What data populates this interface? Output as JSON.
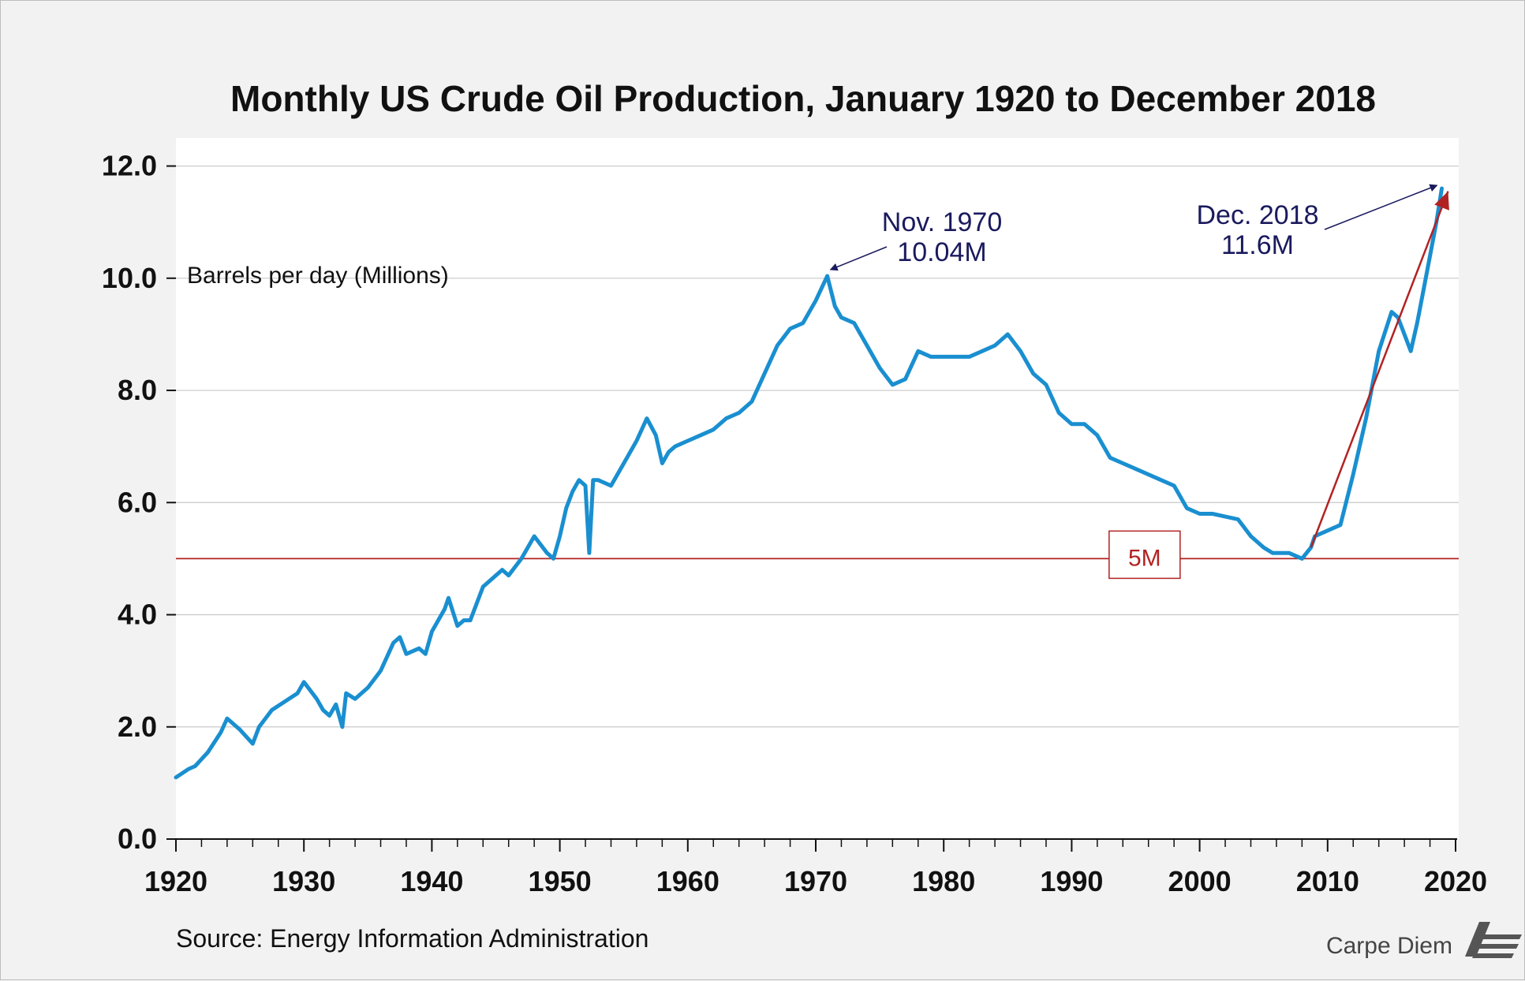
{
  "chart_data": {
    "type": "line",
    "title": "Monthly US Crude Oil Production, January 1920 to December 2018",
    "ylabel": "Barrels per day (Millions)",
    "xlabel": "",
    "xlim": [
      1920,
      2021
    ],
    "ylim": [
      0,
      12.5
    ],
    "x_ticks": [
      "1920",
      "1930",
      "1940",
      "1950",
      "1960",
      "1970",
      "1980",
      "1990",
      "2000",
      "2010",
      "2020"
    ],
    "y_ticks": [
      "0.0",
      "2.0",
      "4.0",
      "6.0",
      "8.0",
      "10.0",
      "12.0"
    ],
    "grid": true,
    "series": [
      {
        "name": "US crude oil production",
        "color": "#1a8fd0",
        "x": [
          1920.0,
          1921.0,
          1921.5,
          1922.5,
          1923.5,
          1924.0,
          1925.0,
          1926.0,
          1926.5,
          1927.5,
          1929.5,
          1930.0,
          1931.0,
          1931.5,
          1932.0,
          1932.5,
          1933.0,
          1933.3,
          1934.0,
          1935.0,
          1936.0,
          1937.0,
          1937.5,
          1938.0,
          1939.0,
          1939.5,
          1940.0,
          1940.5,
          1941.0,
          1941.3,
          1942.0,
          1942.5,
          1943.0,
          1944.0,
          1945.0,
          1945.5,
          1946.0,
          1947.0,
          1948.0,
          1949.0,
          1949.5,
          1950.0,
          1950.5,
          1951.0,
          1951.5,
          1952.0,
          1952.3,
          1952.6,
          1953.0,
          1954.0,
          1955.0,
          1956.0,
          1956.8,
          1957.5,
          1958.0,
          1958.5,
          1959.0,
          1960.0,
          1961.0,
          1962.0,
          1963.0,
          1964.0,
          1965.0,
          1966.0,
          1967.0,
          1968.0,
          1969.0,
          1970.0,
          1970.9,
          1971.5,
          1972.0,
          1973.0,
          1974.0,
          1975.0,
          1976.0,
          1977.0,
          1978.0,
          1979.0,
          1980.0,
          1981.0,
          1982.0,
          1983.0,
          1984.0,
          1985.0,
          1986.0,
          1987.0,
          1988.0,
          1989.0,
          1990.0,
          1991.0,
          1992.0,
          1993.0,
          1994.0,
          1995.0,
          1996.0,
          1997.0,
          1998.0,
          1999.0,
          2000.0,
          2001.0,
          2002.0,
          2003.0,
          2004.0,
          2005.0,
          2005.7,
          2006.0,
          2007.0,
          2008.0,
          2008.7,
          2009.0,
          2010.0,
          2011.0,
          2012.0,
          2013.0,
          2014.0,
          2015.0,
          2015.5,
          2016.0,
          2016.5,
          2017.0,
          2017.5,
          2018.0,
          2018.5,
          2018.92
        ],
        "y": [
          1.1,
          1.25,
          1.3,
          1.55,
          1.9,
          2.15,
          1.95,
          1.7,
          2.0,
          2.3,
          2.6,
          2.8,
          2.5,
          2.3,
          2.2,
          2.4,
          2.0,
          2.6,
          2.5,
          2.7,
          3.0,
          3.5,
          3.6,
          3.3,
          3.4,
          3.3,
          3.7,
          3.9,
          4.1,
          4.3,
          3.8,
          3.9,
          3.9,
          4.5,
          4.7,
          4.8,
          4.7,
          5.0,
          5.4,
          5.1,
          5.0,
          5.4,
          5.9,
          6.2,
          6.4,
          6.3,
          5.1,
          6.4,
          6.4,
          6.3,
          6.7,
          7.1,
          7.5,
          7.2,
          6.7,
          6.9,
          7.0,
          7.1,
          7.2,
          7.3,
          7.5,
          7.6,
          7.8,
          8.3,
          8.8,
          9.1,
          9.2,
          9.6,
          10.04,
          9.5,
          9.3,
          9.2,
          8.8,
          8.4,
          8.1,
          8.2,
          8.7,
          8.6,
          8.6,
          8.6,
          8.6,
          8.7,
          8.8,
          9.0,
          8.7,
          8.3,
          8.1,
          7.6,
          7.4,
          7.4,
          7.2,
          6.8,
          6.7,
          6.6,
          6.5,
          6.4,
          6.3,
          5.9,
          5.8,
          5.8,
          5.75,
          5.7,
          5.4,
          5.2,
          5.1,
          5.1,
          5.1,
          5.0,
          5.2,
          5.4,
          5.5,
          5.6,
          6.5,
          7.5,
          8.7,
          9.4,
          9.3,
          9.0,
          8.7,
          9.2,
          9.8,
          10.4,
          11.0,
          11.6
        ]
      }
    ],
    "reference_line": {
      "value": 5.0,
      "label": "5M",
      "color": "#b22222"
    },
    "trend_arrow": {
      "x0": 2008.7,
      "y0": 5.2,
      "x1": 2018.92,
      "y1": 11.55,
      "color": "#b22222"
    },
    "annotations": [
      {
        "line1": "Nov. 1970",
        "line2": "10.04M",
        "x": 1970.9,
        "y": 10.04
      },
      {
        "line1": "Dec. 2018",
        "line2": "11.6M",
        "x": 2018.92,
        "y": 11.6
      }
    ],
    "source": "Source: Energy Information Administration",
    "brand": "Carpe Diem",
    "brand_logo": "AEI"
  }
}
